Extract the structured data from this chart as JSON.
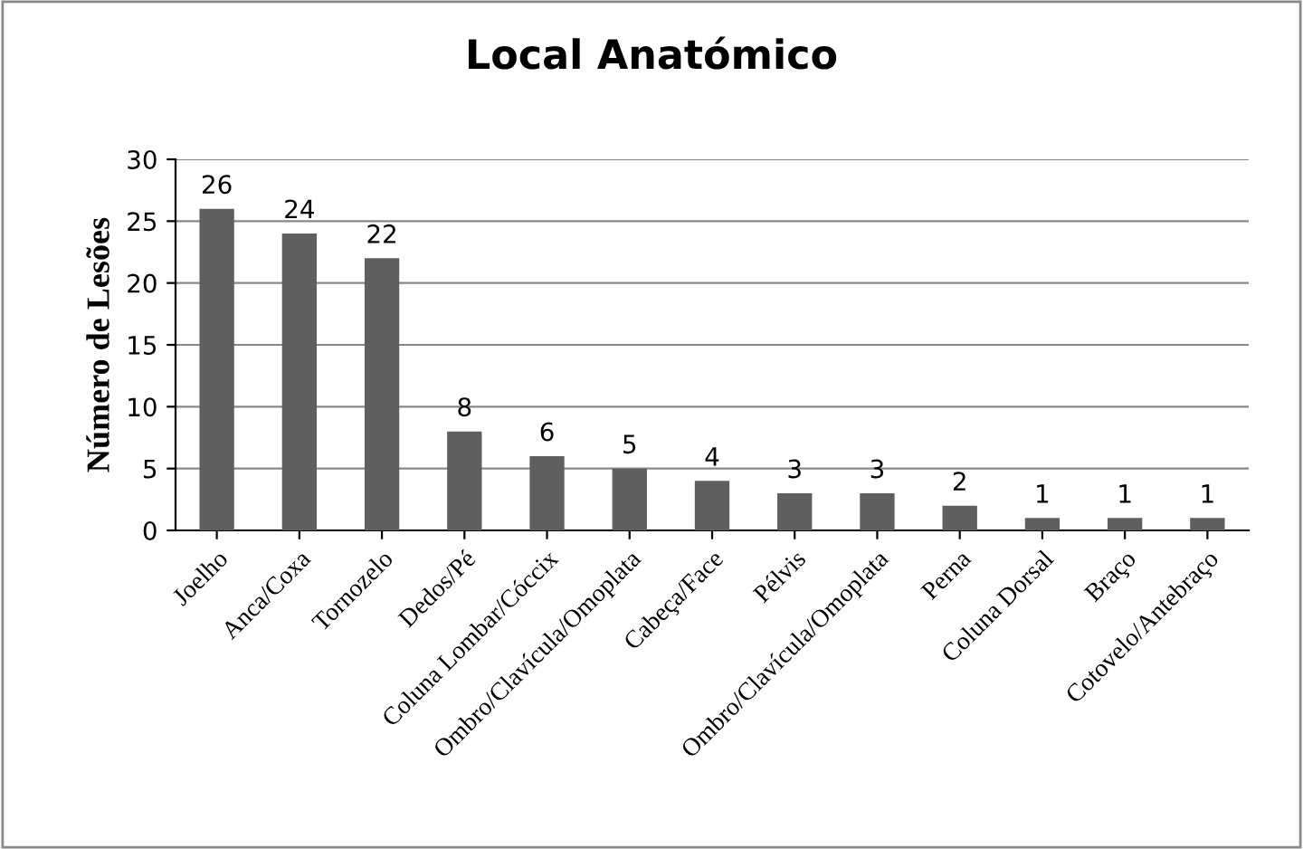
{
  "chart_data": {
    "type": "bar",
    "title": "Local Anatómico",
    "ylabel": "Número de Lesões",
    "categories": [
      "Joelho",
      "Anca/Coxa",
      "Tornozelo",
      "Dedos/Pé",
      "Coluna Lombar/Cóccix",
      "Ombro/Clavícula/Omoplata",
      "Cabeça/Face",
      "Pélvis",
      "Ombro/Clavícula/Omoplata",
      "Perna",
      "Coluna Dorsal",
      "Braço",
      "Cotovelo/Antebraço"
    ],
    "values": [
      26,
      24,
      22,
      8,
      6,
      5,
      4,
      3,
      3,
      2,
      1,
      1,
      1
    ],
    "color": "#5f5f5f",
    "ylim": [
      0,
      30
    ],
    "yticks": [
      0,
      5,
      10,
      15,
      20,
      25,
      30
    ],
    "grid": "y",
    "data_labels": true
  }
}
